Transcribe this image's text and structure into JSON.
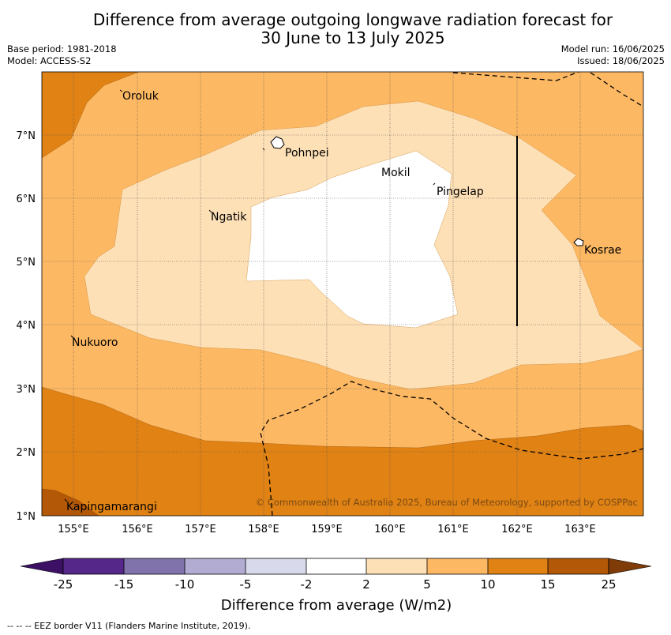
{
  "title_line1": "Difference from average outgoing longwave radiation forecast for",
  "title_line2": "30 June to 13 July 2025",
  "base_period": "Base period: 1981-2018",
  "model": "Model: ACCESS-S2",
  "model_run": "Model run: 16/06/2025",
  "issued": "Issued: 18/06/2025",
  "copyright": "© Commonwealth of Australia 2025, Bureau of Meteorology, supported by COSPPac",
  "lon_labels": [
    "155°E",
    "156°E",
    "157°E",
    "158°E",
    "159°E",
    "160°E",
    "161°E",
    "162°E",
    "163°E"
  ],
  "lat_labels": [
    "7°N",
    "6°N",
    "5°N",
    "4°N",
    "3°N",
    "2°N",
    "1°N"
  ],
  "places": {
    "oroluk": "Oroluk",
    "pohnpei": "Pohnpei",
    "mokil": "Mokil",
    "pingelap": "Pingelap",
    "ngatik": "Ngatik",
    "kosrae": "Kosrae",
    "nukuoro": "Nukuoro",
    "kapingamarangi": "Kapingamarangi"
  },
  "colorbar": {
    "ticks": [
      "-25",
      "-15",
      "-10",
      "-5",
      "-2",
      "2",
      "5",
      "10",
      "15",
      "25"
    ],
    "colors": [
      "#3c1064",
      "#542788",
      "#8073ac",
      "#b2abd2",
      "#d8daeb",
      "#ffffff",
      "#fee0b6",
      "#fdb863",
      "#e08214",
      "#b35806",
      "#7f3b08"
    ],
    "label": "Difference from average (W/m2)"
  },
  "footer": "--  --  -- EEZ border V11 (Flanders Marine Institute, 2019)."
}
